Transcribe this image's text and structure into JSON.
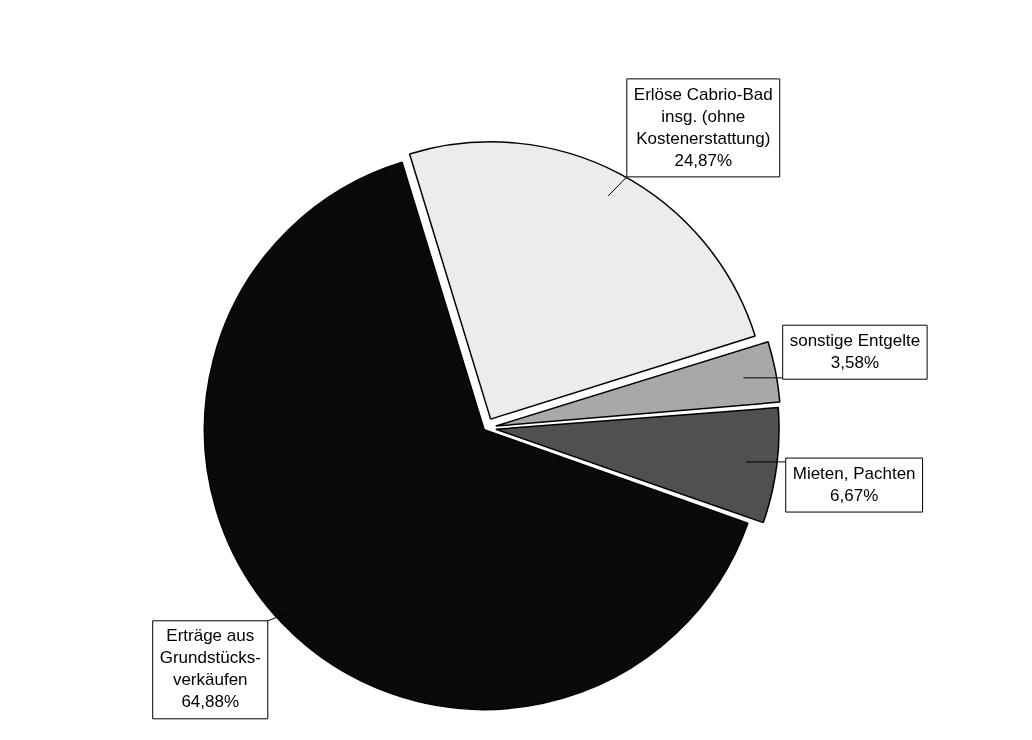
{
  "chart_data": {
    "type": "pie",
    "categories": [
      "Erlöse Cabrio-Bad insg. (ohne Kostenerstattung)",
      "sonstige Entgelte",
      "Mieten, Pachten",
      "Erträge aus Grundstücks-verkäufen"
    ],
    "values": [
      24.87,
      3.58,
      6.67,
      64.88
    ],
    "value_labels": [
      "24,87%",
      "3,58%",
      "6,67%",
      "64,88%"
    ],
    "colors": [
      "#ececec",
      "#a8a8a8",
      "#505050",
      "#0a0a0a"
    ],
    "legend": false
  }
}
